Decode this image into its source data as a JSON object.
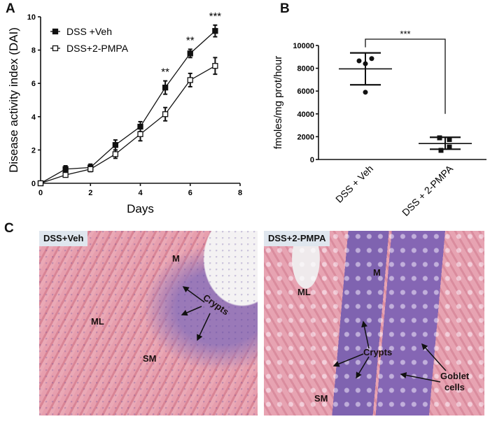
{
  "panels": {
    "a": {
      "letter": "A"
    },
    "b": {
      "letter": "B"
    },
    "c": {
      "letter": "C"
    }
  },
  "chart_data": [
    {
      "panel": "A",
      "type": "line",
      "title": "",
      "xlabel": "Days",
      "ylabel": "Disease activity index (DAI)",
      "xlim": [
        0,
        8
      ],
      "ylim": [
        0,
        10
      ],
      "x_ticks": [
        "0",
        "2",
        "4",
        "6",
        "8"
      ],
      "y_ticks": [
        "0",
        "2",
        "4",
        "6",
        "8",
        "10"
      ],
      "grid": false,
      "legend_position": "upper-left",
      "x": [
        0,
        1,
        2,
        3,
        4,
        5,
        6,
        7
      ],
      "series": [
        {
          "name": "DSS +Veh",
          "marker": "filled-square",
          "values": [
            0,
            0.85,
            0.95,
            2.3,
            3.4,
            5.75,
            7.8,
            9.15
          ],
          "error": [
            0.05,
            0.2,
            0.2,
            0.3,
            0.3,
            0.4,
            0.25,
            0.35
          ]
        },
        {
          "name": "DSS+2-PMPA",
          "marker": "open-square",
          "values": [
            0,
            0.5,
            0.85,
            1.75,
            2.95,
            4.15,
            6.2,
            7.05
          ],
          "error": [
            0.05,
            0.1,
            0.15,
            0.25,
            0.4,
            0.4,
            0.4,
            0.5
          ]
        }
      ],
      "annotations": [
        {
          "x": 5,
          "text": "**"
        },
        {
          "x": 6,
          "text": "**"
        },
        {
          "x": 7,
          "text": "***"
        }
      ]
    },
    {
      "panel": "B",
      "type": "scatter",
      "title": "",
      "xlabel": "",
      "ylabel": "fmoles/mg prot/hour",
      "ylim": [
        0,
        10000
      ],
      "y_ticks": [
        "0",
        "2000",
        "4000",
        "6000",
        "8000",
        "10000"
      ],
      "categories": [
        "DSS + Veh",
        "DSS + 2-PMPA"
      ],
      "grid": false,
      "series": [
        {
          "name": "DSS + Veh",
          "marker": "filled-circle",
          "points": [
            8650,
            8400,
            8850,
            5900
          ],
          "mean": 7950,
          "sd_upper": 9350,
          "sd_lower": 6550
        },
        {
          "name": "DSS + 2-PMPA",
          "marker": "filled-square",
          "points": [
            1900,
            1750,
            1100,
            800
          ],
          "mean": 1400,
          "sd_upper": 1950,
          "sd_lower": 900
        }
      ],
      "annotations": [
        {
          "between": [
            "DSS + Veh",
            "DSS + 2-PMPA"
          ],
          "text": "***"
        }
      ]
    }
  ],
  "histology": {
    "left": {
      "tag": "DSS+Veh",
      "labels": {
        "m": "M",
        "crypts": "Crypts",
        "ml": "ML",
        "sm": "SM"
      }
    },
    "right": {
      "tag": "DSS+2-PMPA",
      "labels": {
        "m": "M",
        "ml": "ML",
        "crypts": "Crypts",
        "goblet1": "Goblet",
        "goblet2": "cells",
        "sm": "SM"
      }
    }
  }
}
